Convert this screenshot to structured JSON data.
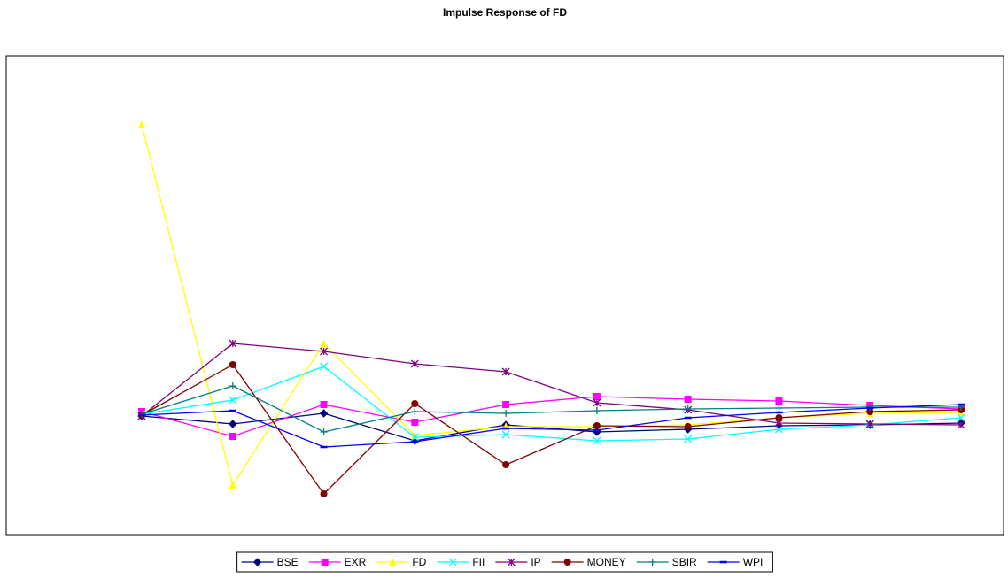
{
  "chart_data": {
    "type": "line",
    "title": "Impulse Response of FD",
    "categories": [
      null,
      null,
      null,
      null,
      null,
      null,
      null,
      null,
      null,
      null
    ],
    "ylim": [
      -13.4,
      40.7
    ],
    "series": [
      {
        "name": "BSE",
        "color": "#000080",
        "marker": "diamond",
        "values": [
          0,
          -0.9,
          0.3,
          -2.8,
          -1.0,
          -1.8,
          -1.5,
          -1.1,
          -1.0,
          -0.8
        ]
      },
      {
        "name": "EXR",
        "color": "#ff00ff",
        "marker": "square",
        "values": [
          0.5,
          -2.3,
          1.3,
          -0.7,
          1.3,
          2.2,
          1.9,
          1.7,
          1.2,
          0.8
        ]
      },
      {
        "name": "FD",
        "color": "#ffff00",
        "marker": "triangle",
        "values": [
          32.9,
          -7.8,
          8.2,
          -2.2,
          -1.2,
          -1.2,
          -1.0,
          -0.2,
          0.3,
          0.4
        ]
      },
      {
        "name": "FII",
        "color": "#00ffff",
        "marker": "x",
        "values": [
          0.2,
          1.8,
          5.6,
          -2.4,
          -2.1,
          -2.8,
          -2.6,
          -1.5,
          -1.0,
          -0.2
        ]
      },
      {
        "name": "IP",
        "color": "#800080",
        "marker": "star",
        "values": [
          0,
          8.2,
          7.3,
          5.9,
          5.0,
          1.5,
          0.7,
          -0.8,
          -0.9,
          -1.0
        ]
      },
      {
        "name": "MONEY",
        "color": "#800000",
        "marker": "circle",
        "values": [
          0.1,
          5.8,
          -8.8,
          1.4,
          -5.5,
          -1.1,
          -1.2,
          -0.2,
          0.5,
          0.7
        ]
      },
      {
        "name": "SBIR",
        "color": "#008080",
        "marker": "plus",
        "values": [
          0.2,
          3.4,
          -1.8,
          0.5,
          0.3,
          0.6,
          0.8,
          0.9,
          1.0,
          1.0
        ]
      },
      {
        "name": "WPI",
        "color": "#0000ff",
        "marker": "dash",
        "values": [
          0.1,
          0.6,
          -3.5,
          -2.9,
          -1.4,
          -1.6,
          -0.2,
          0.4,
          0.9,
          1.3
        ]
      }
    ]
  }
}
